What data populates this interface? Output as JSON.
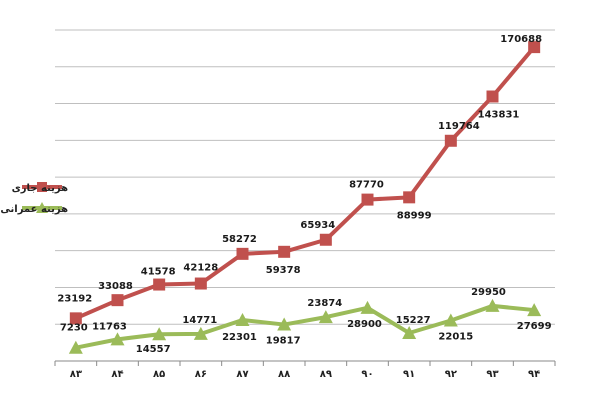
{
  "chart_data": {
    "type": "line",
    "categories": [
      "۸۳",
      "۸۴",
      "۸۵",
      "۸۶",
      "۸۷",
      "۸۸",
      "۸۹",
      "۹۰",
      "۹۱",
      "۹۲",
      "۹۳",
      "۹۴"
    ],
    "series": [
      {
        "name": "هزینه جاری",
        "color": "#c0504d",
        "marker": "square",
        "values": [
          23192,
          33088,
          41578,
          42128,
          58272,
          59378,
          65934,
          87770,
          88999,
          119764,
          143831,
          170688
        ],
        "labels": [
          "23192",
          "33088",
          "41578",
          "42128",
          "58272",
          "59378",
          "65934",
          "87770",
          "88999",
          "119764",
          "143831",
          "170688"
        ]
      },
      {
        "name": "هزینه عمرانی",
        "color": "#9bbb59",
        "marker": "triangle",
        "values": [
          7230,
          11763,
          14557,
          14771,
          22301,
          19817,
          23874,
          28900,
          15227,
          22015,
          29950,
          27699
        ],
        "labels": [
          "7230",
          "11763",
          "14557",
          "14771",
          "22301",
          "19817",
          "23874",
          "28900",
          "15227",
          "22015",
          "29950",
          "27699"
        ]
      }
    ],
    "ylim": [
      0,
      180000
    ],
    "grid": true,
    "legend_position": "left"
  }
}
